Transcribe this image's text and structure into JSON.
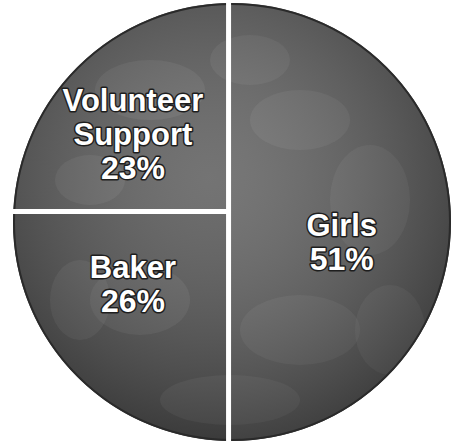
{
  "chart_data": {
    "type": "pie",
    "categories": [
      "Girls",
      "Baker",
      "Volunteer Support"
    ],
    "values": [
      51,
      26,
      23
    ],
    "value_labels": [
      "51%",
      "26%",
      "23%"
    ],
    "colors": [
      "#5a5a5a",
      "#4e4e4e",
      "#555555"
    ],
    "data_labels": true
  }
}
